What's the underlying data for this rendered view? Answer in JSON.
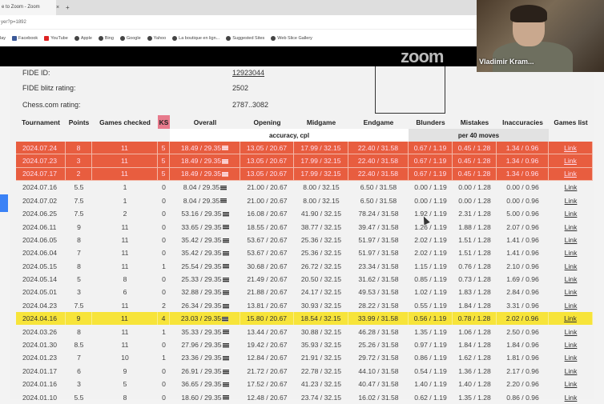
{
  "browser": {
    "tab_title": "e to Zoom - Zoom",
    "tab_close": "×",
    "new_tab": "+",
    "address": "yer?p=1892",
    "bookmarks": [
      {
        "label": "lay",
        "icon": "none"
      },
      {
        "label": "Facebook",
        "icon": "facebook-icon"
      },
      {
        "label": "YouTube",
        "icon": "youtube-icon"
      },
      {
        "label": "Apple",
        "icon": "globe-icon"
      },
      {
        "label": "Bing",
        "icon": "globe-icon"
      },
      {
        "label": "Google",
        "icon": "globe-icon"
      },
      {
        "label": "Yahoo",
        "icon": "globe-icon"
      },
      {
        "label": "La boutique en lign...",
        "icon": "globe-icon"
      },
      {
        "label": "Suggested Sites",
        "icon": "globe-icon"
      },
      {
        "label": "Web Slice Gallery",
        "icon": "globe-icon"
      }
    ]
  },
  "video": {
    "participant_name": "Vladimir Kram...",
    "watermark": "zoom"
  },
  "profile": {
    "fide_id_label": "FIDE ID:",
    "fide_id": "12923044",
    "blitz_label": "FIDE blitz rating:",
    "blitz": "2502",
    "chesscom_label": "Chess.com rating:",
    "chesscom": "2787..3082"
  },
  "table": {
    "headers": [
      "Tournament",
      "Points",
      "Games checked",
      "KS",
      "Overall",
      "Opening",
      "Midgame",
      "Endgame",
      "Blunders",
      "Mistakes",
      "Inaccuracies",
      "Games list"
    ],
    "group_accuracy": "accuracy, cpl",
    "group_per40": "per 40 moves",
    "colors": {
      "red": "#e85d3f",
      "yellow": "#f7e43a",
      "ks_header": "#e77a8c"
    },
    "rows": [
      {
        "hl": "red",
        "c": [
          "2024.07.24",
          "8",
          "11",
          "5",
          "18.49 / 29.35",
          "13.05 / 20.67",
          "17.99 / 32.15",
          "22.40 / 31.58",
          "0.67 / 1.19",
          "0.45 / 1.28",
          "1.34 / 0.96",
          "Link"
        ]
      },
      {
        "hl": "red",
        "c": [
          "2024.07.23",
          "3",
          "11",
          "5",
          "18.49 / 29.35",
          "13.05 / 20.67",
          "17.99 / 32.15",
          "22.40 / 31.58",
          "0.67 / 1.19",
          "0.45 / 1.28",
          "1.34 / 0.96",
          "Link"
        ]
      },
      {
        "hl": "red",
        "c": [
          "2024.07.17",
          "2",
          "11",
          "5",
          "18.49 / 29.35",
          "13.05 / 20.67",
          "17.99 / 32.15",
          "22.40 / 31.58",
          "0.67 / 1.19",
          "0.45 / 1.28",
          "1.34 / 0.96",
          "Link"
        ]
      },
      {
        "hl": "",
        "c": [
          "2024.07.16",
          "5.5",
          "1",
          "0",
          "8.04 / 29.35",
          "21.00 / 20.67",
          "8.00 / 32.15",
          "6.50 / 31.58",
          "0.00 / 1.19",
          "0.00 / 1.28",
          "0.00 / 0.96",
          "Link"
        ]
      },
      {
        "hl": "",
        "c": [
          "2024.07.02",
          "7.5",
          "1",
          "0",
          "8.04 / 29.35",
          "21.00 / 20.67",
          "8.00 / 32.15",
          "6.50 / 31.58",
          "0.00 / 1.19",
          "0.00 / 1.28",
          "0.00 / 0.96",
          "Link"
        ]
      },
      {
        "hl": "",
        "c": [
          "2024.06.25",
          "7.5",
          "2",
          "0",
          "53.16 / 29.35",
          "16.08 / 20.67",
          "41.90 / 32.15",
          "78.24 / 31.58",
          "1.92 / 1.19",
          "2.31 / 1.28",
          "5.00 / 0.96",
          "Link"
        ]
      },
      {
        "hl": "",
        "c": [
          "2024.06.11",
          "9",
          "11",
          "0",
          "33.65 / 29.35",
          "18.55 / 20.67",
          "38.77 / 32.15",
          "39.47 / 31.58",
          "1.26 / 1.19",
          "1.88 / 1.28",
          "2.07 / 0.96",
          "Link"
        ]
      },
      {
        "hl": "",
        "c": [
          "2024.06.05",
          "8",
          "11",
          "0",
          "35.42 / 29.35",
          "53.67 / 20.67",
          "25.36 / 32.15",
          "51.97 / 31.58",
          "2.02 / 1.19",
          "1.51 / 1.28",
          "1.41 / 0.96",
          "Link"
        ]
      },
      {
        "hl": "",
        "c": [
          "2024.06.04",
          "7",
          "11",
          "0",
          "35.42 / 29.35",
          "53.67 / 20.67",
          "25.36 / 32.15",
          "51.97 / 31.58",
          "2.02 / 1.19",
          "1.51 / 1.28",
          "1.41 / 0.96",
          "Link"
        ]
      },
      {
        "hl": "",
        "c": [
          "2024.05.15",
          "8",
          "11",
          "1",
          "25.54 / 29.35",
          "30.68 / 20.67",
          "26.72 / 32.15",
          "23.34 / 31.58",
          "1.15 / 1.19",
          "0.76 / 1.28",
          "2.10 / 0.96",
          "Link"
        ]
      },
      {
        "hl": "",
        "c": [
          "2024.05.14",
          "5",
          "8",
          "0",
          "25.33 / 29.35",
          "21.49 / 20.67",
          "20.50 / 32.15",
          "31.62 / 31.58",
          "0.85 / 1.19",
          "0.73 / 1.28",
          "1.69 / 0.96",
          "Link"
        ]
      },
      {
        "hl": "",
        "c": [
          "2024.05.01",
          "3",
          "6",
          "0",
          "32.88 / 29.35",
          "21.88 / 20.67",
          "24.17 / 32.15",
          "49.53 / 31.58",
          "1.02 / 1.19",
          "1.83 / 1.28",
          "2.84 / 0.96",
          "Link"
        ]
      },
      {
        "hl": "",
        "c": [
          "2024.04.23",
          "7.5",
          "11",
          "2",
          "26.34 / 29.35",
          "13.81 / 20.67",
          "30.93 / 32.15",
          "28.22 / 31.58",
          "0.55 / 1.19",
          "1.84 / 1.28",
          "3.31 / 0.96",
          "Link"
        ]
      },
      {
        "hl": "yellow",
        "c": [
          "2024.04.16",
          "9",
          "11",
          "4",
          "23.03 / 29.35",
          "15.80 / 20.67",
          "18.54 / 32.15",
          "33.99 / 31.58",
          "0.56 / 1.19",
          "0.78 / 1.28",
          "2.02 / 0.96",
          "Link"
        ]
      },
      {
        "hl": "",
        "c": [
          "2024.03.26",
          "8",
          "11",
          "1",
          "35.33 / 29.35",
          "13.44 / 20.67",
          "30.88 / 32.15",
          "46.28 / 31.58",
          "1.35 / 1.19",
          "1.06 / 1.28",
          "2.50 / 0.96",
          "Link"
        ]
      },
      {
        "hl": "",
        "c": [
          "2024.01.30",
          "8.5",
          "11",
          "0",
          "27.96 / 29.35",
          "19.42 / 20.67",
          "35.93 / 32.15",
          "25.26 / 31.58",
          "0.97 / 1.19",
          "1.84 / 1.28",
          "1.84 / 0.96",
          "Link"
        ]
      },
      {
        "hl": "",
        "c": [
          "2024.01.23",
          "7",
          "10",
          "1",
          "23.36 / 29.35",
          "12.84 / 20.67",
          "21.91 / 32.15",
          "29.72 / 31.58",
          "0.86 / 1.19",
          "1.62 / 1.28",
          "1.81 / 0.96",
          "Link"
        ]
      },
      {
        "hl": "",
        "c": [
          "2024.01.17",
          "6",
          "9",
          "0",
          "26.91 / 29.35",
          "21.72 / 20.67",
          "22.78 / 32.15",
          "44.10 / 31.58",
          "0.54 / 1.19",
          "1.36 / 1.28",
          "2.17 / 0.96",
          "Link"
        ]
      },
      {
        "hl": "",
        "c": [
          "2024.01.16",
          "3",
          "5",
          "0",
          "36.65 / 29.35",
          "17.52 / 20.67",
          "41.23 / 32.15",
          "40.47 / 31.58",
          "1.40 / 1.19",
          "1.40 / 1.28",
          "2.20 / 0.96",
          "Link"
        ]
      },
      {
        "hl": "",
        "c": [
          "2024.01.10",
          "5.5",
          "8",
          "0",
          "18.60 / 29.35",
          "12.48 / 20.67",
          "23.74 / 32.15",
          "16.02 / 31.58",
          "0.62 / 1.19",
          "1.35 / 1.28",
          "0.86 / 0.96",
          "Link"
        ]
      }
    ]
  }
}
